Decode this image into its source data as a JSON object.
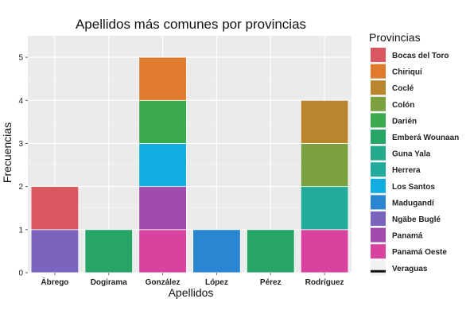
{
  "chart_data": {
    "type": "bar",
    "stacked": true,
    "title": "Apellidos más comunes por provincias",
    "xlabel": "Apellidos",
    "ylabel": "Frecuencias",
    "ylim": [
      0,
      5.5
    ],
    "yticks": [
      0,
      1,
      2,
      3,
      4,
      5
    ],
    "grid": true,
    "legend_position": "right",
    "legend_title": "Provincias",
    "categories": [
      "Ábrego",
      "Dogirama",
      "González",
      "López",
      "Pérez",
      "Rodríguez"
    ],
    "series": [
      {
        "name": "Bocas del Toro",
        "color": "#d9585f",
        "values": [
          1,
          0,
          0,
          0,
          0,
          0
        ]
      },
      {
        "name": "Chiriquí",
        "color": "#e07a2c",
        "values": [
          0,
          0,
          1,
          0,
          0,
          0
        ]
      },
      {
        "name": "Coclé",
        "color": "#b8862f",
        "values": [
          0,
          0,
          0,
          0,
          0,
          1
        ]
      },
      {
        "name": "Colón",
        "color": "#7ba040",
        "values": [
          0,
          0,
          0,
          0,
          0,
          1
        ]
      },
      {
        "name": "Darién",
        "color": "#3aaa4c",
        "values": [
          0,
          0,
          1,
          0,
          0,
          0
        ]
      },
      {
        "name": "Emberá Wounaan",
        "color": "#26a567",
        "values": [
          0,
          1,
          0,
          0,
          1,
          0
        ]
      },
      {
        "name": "Guna Yala",
        "color": "#24a98a",
        "values": [
          0,
          0,
          0,
          0,
          0,
          0
        ]
      },
      {
        "name": "Herrera",
        "color": "#22ab9d",
        "values": [
          0,
          0,
          0,
          0,
          0,
          1
        ]
      },
      {
        "name": "Los Santos",
        "color": "#12ade0",
        "values": [
          0,
          0,
          1,
          0,
          0,
          0
        ]
      },
      {
        "name": "Madugandí",
        "color": "#2b86d1",
        "values": [
          0,
          0,
          0,
          1,
          0,
          0
        ]
      },
      {
        "name": "Ngäbe Buglé",
        "color": "#7a64bd",
        "values": [
          1,
          0,
          0,
          0,
          0,
          0
        ]
      },
      {
        "name": "Panamá",
        "color": "#a04bab",
        "values": [
          0,
          0,
          1,
          0,
          0,
          0
        ]
      },
      {
        "name": "Panamá Oeste",
        "color": "#d943a0",
        "values": [
          0,
          0,
          1,
          0,
          0,
          1
        ]
      },
      {
        "name": "Veraguas",
        "color": "#111111",
        "values": [
          0,
          0,
          0,
          0,
          0,
          0
        ]
      }
    ]
  }
}
